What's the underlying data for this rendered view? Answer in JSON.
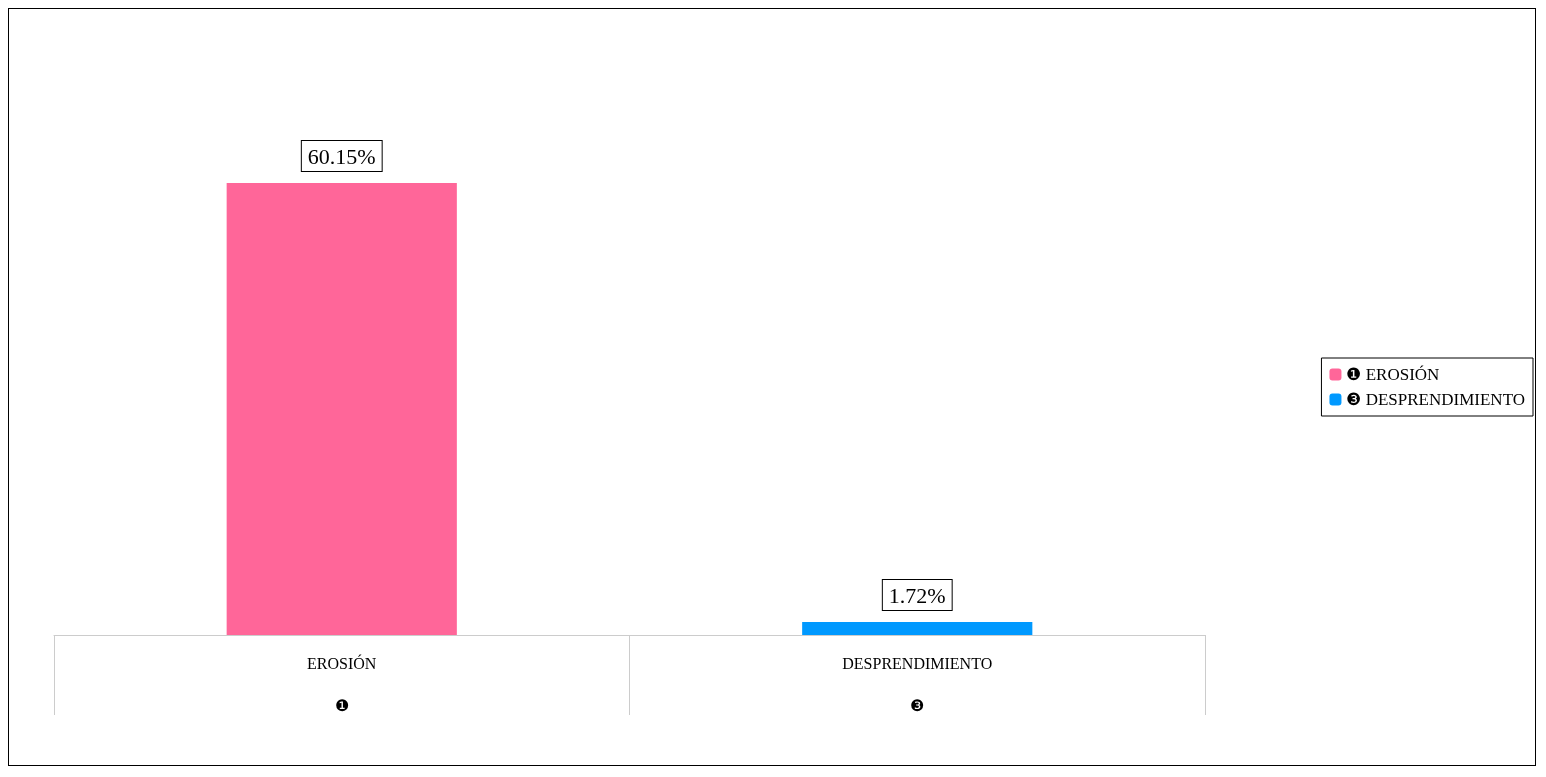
{
  "chart_data": {
    "type": "bar",
    "categories": [
      "EROSIÓN",
      "DESPRENDIMIENTO"
    ],
    "annotations": [
      "❶",
      "❸"
    ],
    "series": [
      {
        "name": "❶ EROSIÓN",
        "color": "#ff6699",
        "values": [
          60.15,
          null
        ],
        "value_labels": [
          "60.15%",
          null
        ]
      },
      {
        "name": "❸ DESPRENDIMIENTO",
        "color": "#0099ff",
        "values": [
          null,
          1.72
        ],
        "value_labels": [
          null,
          "1.72%"
        ]
      }
    ],
    "legend": "right",
    "grid": false
  }
}
